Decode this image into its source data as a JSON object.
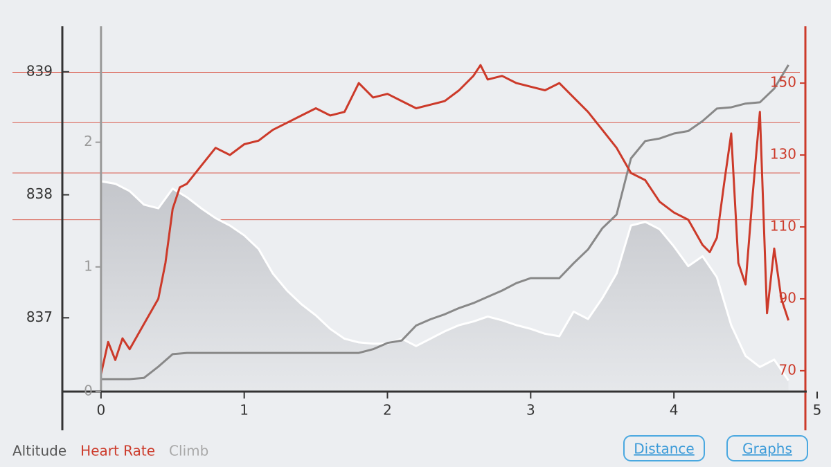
{
  "chart_data": {
    "type": "line",
    "xlim": [
      -0.27,
      5.0
    ],
    "xticks": [
      0,
      1,
      2,
      3,
      4,
      5
    ],
    "ylim": [
      836.4,
      839.37
    ],
    "yticks": [
      837,
      838,
      839
    ],
    "y2lim": [
      0,
      2.93
    ],
    "y2ticks": [
      0,
      1,
      2
    ],
    "y3lim": [
      64.2,
      165.8
    ],
    "y3ticks": [
      70,
      90,
      110,
      130,
      150
    ],
    "zone_lines": [
      153,
      139,
      125,
      112
    ],
    "zone_color": "#d9584a",
    "series": [
      {
        "name": "Altitude",
        "color": "#ffffff",
        "legend_color": "#555555",
        "axis": "y",
        "fill": true,
        "x": [
          0,
          0.1,
          0.2,
          0.3,
          0.4,
          0.5,
          0.6,
          0.7,
          0.8,
          0.9,
          1.0,
          1.1,
          1.2,
          1.3,
          1.4,
          1.5,
          1.6,
          1.7,
          1.8,
          1.9,
          2.0,
          2.1,
          2.2,
          2.3,
          2.4,
          2.5,
          2.6,
          2.7,
          2.8,
          2.9,
          3.0,
          3.1,
          3.2,
          3.3,
          3.4,
          3.5,
          3.6,
          3.7,
          3.8,
          3.9,
          4.0,
          4.1,
          4.2,
          4.3,
          4.4,
          4.5,
          4.6,
          4.7,
          4.8
        ],
        "values": [
          838.11,
          838.09,
          838.03,
          837.92,
          837.89,
          838.05,
          837.98,
          837.89,
          837.81,
          837.75,
          837.67,
          837.56,
          837.36,
          837.22,
          837.11,
          837.02,
          836.91,
          836.83,
          836.8,
          836.79,
          836.79,
          836.83,
          836.77,
          836.83,
          836.89,
          836.94,
          836.97,
          837.01,
          836.98,
          836.94,
          836.91,
          836.87,
          836.85,
          837.05,
          836.99,
          837.16,
          837.36,
          837.75,
          837.78,
          837.72,
          837.58,
          837.42,
          837.5,
          837.33,
          836.94,
          836.69,
          836.6,
          836.66,
          836.49
        ]
      },
      {
        "name": "Heart Rate",
        "color": "#cc3a2a",
        "legend_color": "#cc3a2a",
        "axis": "y3",
        "x": [
          0,
          0.05,
          0.1,
          0.15,
          0.2,
          0.3,
          0.4,
          0.45,
          0.5,
          0.55,
          0.6,
          0.7,
          0.8,
          0.9,
          1.0,
          1.1,
          1.2,
          1.3,
          1.4,
          1.5,
          1.6,
          1.7,
          1.8,
          1.9,
          2.0,
          2.1,
          2.2,
          2.3,
          2.4,
          2.5,
          2.6,
          2.65,
          2.7,
          2.8,
          2.9,
          3.0,
          3.1,
          3.2,
          3.3,
          3.4,
          3.5,
          3.6,
          3.7,
          3.8,
          3.9,
          4.0,
          4.1,
          4.2,
          4.25,
          4.3,
          4.35,
          4.4,
          4.45,
          4.5,
          4.55,
          4.6,
          4.65,
          4.7,
          4.75,
          4.8
        ],
        "values": [
          69,
          78,
          73,
          79,
          76,
          83,
          90,
          100,
          115,
          121,
          122,
          127,
          132,
          130,
          133,
          134,
          137,
          139,
          141,
          143,
          141,
          142,
          150,
          146,
          147,
          145,
          143,
          144,
          145,
          148,
          152,
          155,
          151,
          152,
          150,
          149,
          148,
          150,
          146,
          142,
          137,
          132,
          125,
          123,
          117,
          114,
          112,
          105,
          103,
          107,
          122,
          136,
          100,
          94,
          119,
          142,
          86,
          104,
          90,
          84
        ]
      },
      {
        "name": "Climb",
        "color": "#888888",
        "legend_color": "#a8a8a8",
        "axis": "y2",
        "x": [
          0,
          0.1,
          0.2,
          0.3,
          0.4,
          0.5,
          0.6,
          1.0,
          1.4,
          1.8,
          1.9,
          2.0,
          2.1,
          2.2,
          2.3,
          2.4,
          2.5,
          2.6,
          2.7,
          2.8,
          2.9,
          3.0,
          3.1,
          3.2,
          3.3,
          3.4,
          3.5,
          3.6,
          3.7,
          3.8,
          3.9,
          4.0,
          4.1,
          4.2,
          4.3,
          4.4,
          4.5,
          4.6,
          4.7,
          4.8
        ],
        "values": [
          0.1,
          0.1,
          0.1,
          0.11,
          0.2,
          0.3,
          0.31,
          0.31,
          0.31,
          0.31,
          0.34,
          0.39,
          0.41,
          0.53,
          0.58,
          0.62,
          0.67,
          0.71,
          0.76,
          0.81,
          0.87,
          0.91,
          0.91,
          0.91,
          1.03,
          1.14,
          1.31,
          1.42,
          1.87,
          2.01,
          2.03,
          2.07,
          2.09,
          2.17,
          2.27,
          2.28,
          2.31,
          2.32,
          2.43,
          2.62
        ]
      }
    ],
    "buttons": [
      "Distance",
      "Graphs"
    ]
  }
}
